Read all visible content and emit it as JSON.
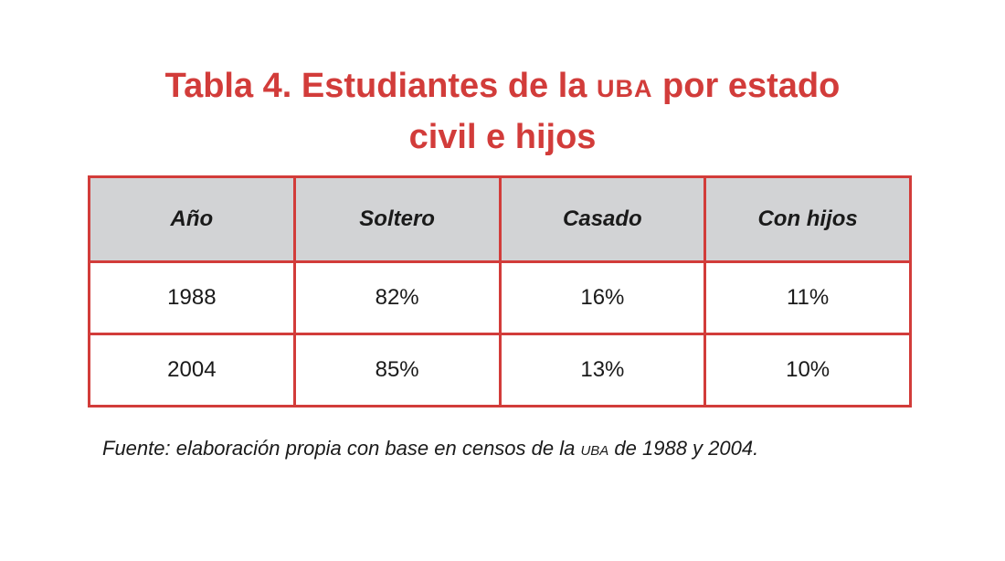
{
  "title": {
    "line1_prefix": "Tabla 4. Estudiantes de la ",
    "line1_acronym": "UBA",
    "line1_suffix": " por estado",
    "line2": "civil e hijos"
  },
  "table": {
    "headers": [
      "Año",
      "Soltero",
      "Casado",
      "Con hijos"
    ],
    "rows": [
      [
        "1988",
        "82%",
        "16%",
        "11%"
      ],
      [
        "2004",
        "85%",
        "13%",
        "10%"
      ]
    ]
  },
  "source": {
    "prefix": "Fuente: elaboración propia con base en censos de la ",
    "acronym": "UBA",
    "suffix": " de 1988 y 2004."
  },
  "colors": {
    "accent": "#d23c3a",
    "header_bg": "#d2d3d5",
    "text": "#1a1a1a"
  }
}
